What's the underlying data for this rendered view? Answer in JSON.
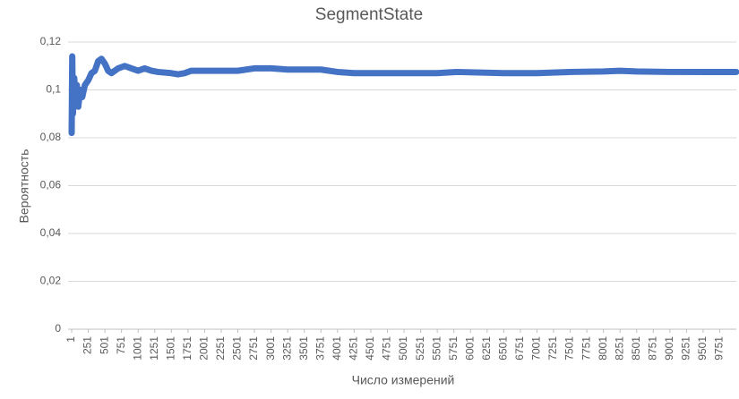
{
  "chart_data": {
    "type": "line",
    "title": "SegmentState",
    "xlabel": "Число измерений",
    "ylabel": "Вероятность",
    "x": [
      1,
      10,
      20,
      40,
      60,
      80,
      100,
      130,
      160,
      200,
      250,
      300,
      350,
      400,
      450,
      500,
      550,
      600,
      700,
      800,
      900,
      1000,
      1100,
      1200,
      1300,
      1500,
      1600,
      1700,
      1800,
      2000,
      2200,
      2500,
      2750,
      3000,
      3250,
      3500,
      3750,
      4000,
      4250,
      4500,
      5000,
      5500,
      5800,
      6500,
      7000,
      7500,
      8000,
      8250,
      8500,
      9000,
      9500,
      10000
    ],
    "values": [
      0.082,
      0.114,
      0.09,
      0.105,
      0.095,
      0.102,
      0.093,
      0.1,
      0.097,
      0.102,
      0.104,
      0.107,
      0.108,
      0.112,
      0.113,
      0.111,
      0.108,
      0.107,
      0.109,
      0.11,
      0.109,
      0.108,
      0.109,
      0.108,
      0.1075,
      0.107,
      0.1065,
      0.107,
      0.108,
      0.108,
      0.108,
      0.108,
      0.109,
      0.109,
      0.1085,
      0.1085,
      0.1085,
      0.1075,
      0.107,
      0.107,
      0.107,
      0.107,
      0.1075,
      0.107,
      0.107,
      0.1075,
      0.1077,
      0.108,
      0.1077,
      0.1075,
      0.1075,
      0.1075
    ],
    "color": "#4472c4",
    "xlim": [
      1,
      10000
    ],
    "xticks": [
      1,
      251,
      501,
      751,
      1001,
      1251,
      1501,
      1751,
      2001,
      2251,
      2501,
      2751,
      3001,
      3251,
      3501,
      3751,
      4001,
      4251,
      4501,
      4751,
      5001,
      5251,
      5501,
      5751,
      6001,
      6251,
      6501,
      6751,
      7001,
      7251,
      7501,
      7751,
      8001,
      8251,
      8501,
      8751,
      9001,
      9251,
      9501,
      9751
    ],
    "ylim": [
      0,
      0.12
    ],
    "yticks": [
      0,
      {
        "value": 0.02,
        "label": "0,02"
      },
      {
        "value": 0.04,
        "label": "0,04"
      },
      {
        "value": 0.06,
        "label": "0,06"
      },
      {
        "value": 0.08,
        "label": "0,08"
      },
      {
        "value": 0.1,
        "label": "0,1"
      },
      {
        "value": 0.12,
        "label": "0,12"
      }
    ],
    "grid": true
  }
}
